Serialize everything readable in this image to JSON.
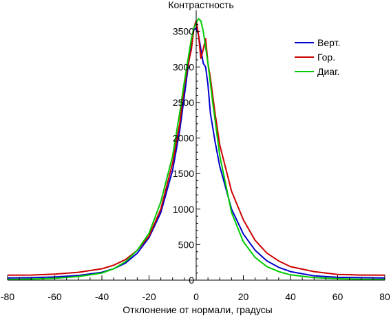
{
  "chart_data": {
    "type": "line",
    "title": "Контрастность",
    "xlabel": "Отклонение от нормали, градусы",
    "ylabel": "",
    "xlim": [
      -80,
      80
    ],
    "ylim": [
      0,
      3700
    ],
    "x_ticks": [
      -80,
      -60,
      -40,
      -20,
      0,
      20,
      40,
      60,
      80
    ],
    "y_ticks": [
      0,
      500,
      1000,
      1500,
      2000,
      2500,
      3000,
      3500
    ],
    "grid": false,
    "legend_position": "top-right",
    "series": [
      {
        "name": "Верт.",
        "color": "#0000cc",
        "points": [
          [
            -80,
            30
          ],
          [
            -70,
            35
          ],
          [
            -60,
            45
          ],
          [
            -50,
            65
          ],
          [
            -40,
            110
          ],
          [
            -35,
            160
          ],
          [
            -30,
            240
          ],
          [
            -25,
            380
          ],
          [
            -20,
            600
          ],
          [
            -15,
            950
          ],
          [
            -10,
            1550
          ],
          [
            -7,
            2100
          ],
          [
            -5,
            2600
          ],
          [
            -3,
            3100
          ],
          [
            -2,
            3350
          ],
          [
            -1,
            3520
          ],
          [
            0,
            3550
          ],
          [
            1,
            3450
          ],
          [
            2,
            3250
          ],
          [
            3,
            3050
          ],
          [
            4,
            3000
          ],
          [
            5,
            2750
          ],
          [
            6,
            2350
          ],
          [
            8,
            1950
          ],
          [
            10,
            1600
          ],
          [
            15,
            1000
          ],
          [
            20,
            650
          ],
          [
            25,
            420
          ],
          [
            30,
            270
          ],
          [
            35,
            180
          ],
          [
            40,
            120
          ],
          [
            50,
            60
          ],
          [
            60,
            40
          ],
          [
            70,
            35
          ],
          [
            80,
            30
          ]
        ]
      },
      {
        "name": "Гор.",
        "color": "#cc0000",
        "points": [
          [
            -80,
            70
          ],
          [
            -70,
            72
          ],
          [
            -60,
            85
          ],
          [
            -50,
            110
          ],
          [
            -40,
            160
          ],
          [
            -35,
            210
          ],
          [
            -30,
            290
          ],
          [
            -25,
            420
          ],
          [
            -20,
            620
          ],
          [
            -15,
            1000
          ],
          [
            -10,
            1650
          ],
          [
            -7,
            2200
          ],
          [
            -5,
            2750
          ],
          [
            -3,
            3100
          ],
          [
            -2,
            3250
          ],
          [
            -1,
            3550
          ],
          [
            0,
            3650
          ],
          [
            1,
            3450
          ],
          [
            2,
            3120
          ],
          [
            3,
            3250
          ],
          [
            4,
            3400
          ],
          [
            5,
            3050
          ],
          [
            6,
            2850
          ],
          [
            8,
            2350
          ],
          [
            10,
            1900
          ],
          [
            15,
            1250
          ],
          [
            20,
            850
          ],
          [
            25,
            560
          ],
          [
            30,
            380
          ],
          [
            35,
            270
          ],
          [
            40,
            190
          ],
          [
            50,
            120
          ],
          [
            60,
            80
          ],
          [
            70,
            72
          ],
          [
            80,
            70
          ]
        ]
      },
      {
        "name": "Диаг.",
        "color": "#00cc00",
        "points": [
          [
            -80,
            10
          ],
          [
            -70,
            15
          ],
          [
            -60,
            25
          ],
          [
            -50,
            50
          ],
          [
            -40,
            100
          ],
          [
            -35,
            160
          ],
          [
            -30,
            260
          ],
          [
            -25,
            420
          ],
          [
            -20,
            660
          ],
          [
            -15,
            1100
          ],
          [
            -10,
            1750
          ],
          [
            -7,
            2350
          ],
          [
            -5,
            2800
          ],
          [
            -3,
            3200
          ],
          [
            -2,
            3400
          ],
          [
            -1,
            3550
          ],
          [
            0,
            3620
          ],
          [
            1,
            3680
          ],
          [
            2,
            3650
          ],
          [
            3,
            3500
          ],
          [
            5,
            3050
          ],
          [
            7,
            2500
          ],
          [
            10,
            1750
          ],
          [
            15,
            950
          ],
          [
            20,
            540
          ],
          [
            25,
            320
          ],
          [
            30,
            190
          ],
          [
            35,
            120
          ],
          [
            40,
            75
          ],
          [
            50,
            35
          ],
          [
            60,
            20
          ],
          [
            70,
            12
          ],
          [
            80,
            10
          ]
        ]
      }
    ]
  }
}
